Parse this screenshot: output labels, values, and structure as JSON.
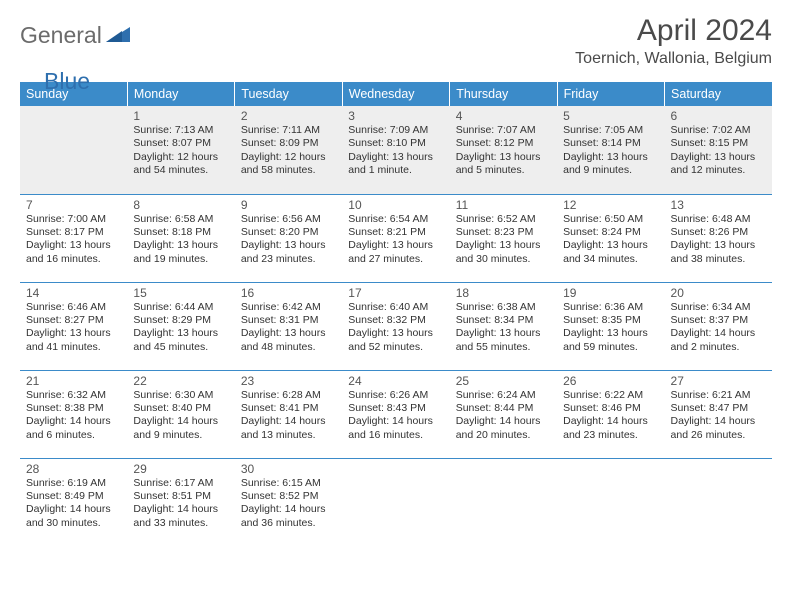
{
  "logo": {
    "general": "General",
    "blue": "Blue"
  },
  "title": "April 2024",
  "location": "Toernich, Wallonia, Belgium",
  "colors": {
    "header_bg": "#3b8bc9",
    "header_text": "#ffffff",
    "week1_bg": "#eeeeee",
    "row_border": "#3b8bc9",
    "logo_blue": "#2e6fae",
    "logo_gray": "#6b6b6b",
    "text": "#333333"
  },
  "weekdays": [
    "Sunday",
    "Monday",
    "Tuesday",
    "Wednesday",
    "Thursday",
    "Friday",
    "Saturday"
  ],
  "weeks": [
    [
      {
        "day": "",
        "sunrise": "",
        "sunset": "",
        "daylight": ""
      },
      {
        "day": "1",
        "sunrise": "7:13 AM",
        "sunset": "8:07 PM",
        "daylight": "12 hours and 54 minutes."
      },
      {
        "day": "2",
        "sunrise": "7:11 AM",
        "sunset": "8:09 PM",
        "daylight": "12 hours and 58 minutes."
      },
      {
        "day": "3",
        "sunrise": "7:09 AM",
        "sunset": "8:10 PM",
        "daylight": "13 hours and 1 minute."
      },
      {
        "day": "4",
        "sunrise": "7:07 AM",
        "sunset": "8:12 PM",
        "daylight": "13 hours and 5 minutes."
      },
      {
        "day": "5",
        "sunrise": "7:05 AM",
        "sunset": "8:14 PM",
        "daylight": "13 hours and 9 minutes."
      },
      {
        "day": "6",
        "sunrise": "7:02 AM",
        "sunset": "8:15 PM",
        "daylight": "13 hours and 12 minutes."
      }
    ],
    [
      {
        "day": "7",
        "sunrise": "7:00 AM",
        "sunset": "8:17 PM",
        "daylight": "13 hours and 16 minutes."
      },
      {
        "day": "8",
        "sunrise": "6:58 AM",
        "sunset": "8:18 PM",
        "daylight": "13 hours and 19 minutes."
      },
      {
        "day": "9",
        "sunrise": "6:56 AM",
        "sunset": "8:20 PM",
        "daylight": "13 hours and 23 minutes."
      },
      {
        "day": "10",
        "sunrise": "6:54 AM",
        "sunset": "8:21 PM",
        "daylight": "13 hours and 27 minutes."
      },
      {
        "day": "11",
        "sunrise": "6:52 AM",
        "sunset": "8:23 PM",
        "daylight": "13 hours and 30 minutes."
      },
      {
        "day": "12",
        "sunrise": "6:50 AM",
        "sunset": "8:24 PM",
        "daylight": "13 hours and 34 minutes."
      },
      {
        "day": "13",
        "sunrise": "6:48 AM",
        "sunset": "8:26 PM",
        "daylight": "13 hours and 38 minutes."
      }
    ],
    [
      {
        "day": "14",
        "sunrise": "6:46 AM",
        "sunset": "8:27 PM",
        "daylight": "13 hours and 41 minutes."
      },
      {
        "day": "15",
        "sunrise": "6:44 AM",
        "sunset": "8:29 PM",
        "daylight": "13 hours and 45 minutes."
      },
      {
        "day": "16",
        "sunrise": "6:42 AM",
        "sunset": "8:31 PM",
        "daylight": "13 hours and 48 minutes."
      },
      {
        "day": "17",
        "sunrise": "6:40 AM",
        "sunset": "8:32 PM",
        "daylight": "13 hours and 52 minutes."
      },
      {
        "day": "18",
        "sunrise": "6:38 AM",
        "sunset": "8:34 PM",
        "daylight": "13 hours and 55 minutes."
      },
      {
        "day": "19",
        "sunrise": "6:36 AM",
        "sunset": "8:35 PM",
        "daylight": "13 hours and 59 minutes."
      },
      {
        "day": "20",
        "sunrise": "6:34 AM",
        "sunset": "8:37 PM",
        "daylight": "14 hours and 2 minutes."
      }
    ],
    [
      {
        "day": "21",
        "sunrise": "6:32 AM",
        "sunset": "8:38 PM",
        "daylight": "14 hours and 6 minutes."
      },
      {
        "day": "22",
        "sunrise": "6:30 AM",
        "sunset": "8:40 PM",
        "daylight": "14 hours and 9 minutes."
      },
      {
        "day": "23",
        "sunrise": "6:28 AM",
        "sunset": "8:41 PM",
        "daylight": "14 hours and 13 minutes."
      },
      {
        "day": "24",
        "sunrise": "6:26 AM",
        "sunset": "8:43 PM",
        "daylight": "14 hours and 16 minutes."
      },
      {
        "day": "25",
        "sunrise": "6:24 AM",
        "sunset": "8:44 PM",
        "daylight": "14 hours and 20 minutes."
      },
      {
        "day": "26",
        "sunrise": "6:22 AM",
        "sunset": "8:46 PM",
        "daylight": "14 hours and 23 minutes."
      },
      {
        "day": "27",
        "sunrise": "6:21 AM",
        "sunset": "8:47 PM",
        "daylight": "14 hours and 26 minutes."
      }
    ],
    [
      {
        "day": "28",
        "sunrise": "6:19 AM",
        "sunset": "8:49 PM",
        "daylight": "14 hours and 30 minutes."
      },
      {
        "day": "29",
        "sunrise": "6:17 AM",
        "sunset": "8:51 PM",
        "daylight": "14 hours and 33 minutes."
      },
      {
        "day": "30",
        "sunrise": "6:15 AM",
        "sunset": "8:52 PM",
        "daylight": "14 hours and 36 minutes."
      },
      {
        "day": "",
        "sunrise": "",
        "sunset": "",
        "daylight": ""
      },
      {
        "day": "",
        "sunrise": "",
        "sunset": "",
        "daylight": ""
      },
      {
        "day": "",
        "sunrise": "",
        "sunset": "",
        "daylight": ""
      },
      {
        "day": "",
        "sunrise": "",
        "sunset": "",
        "daylight": ""
      }
    ]
  ],
  "labels": {
    "sunrise": "Sunrise:",
    "sunset": "Sunset:",
    "daylight": "Daylight:"
  }
}
